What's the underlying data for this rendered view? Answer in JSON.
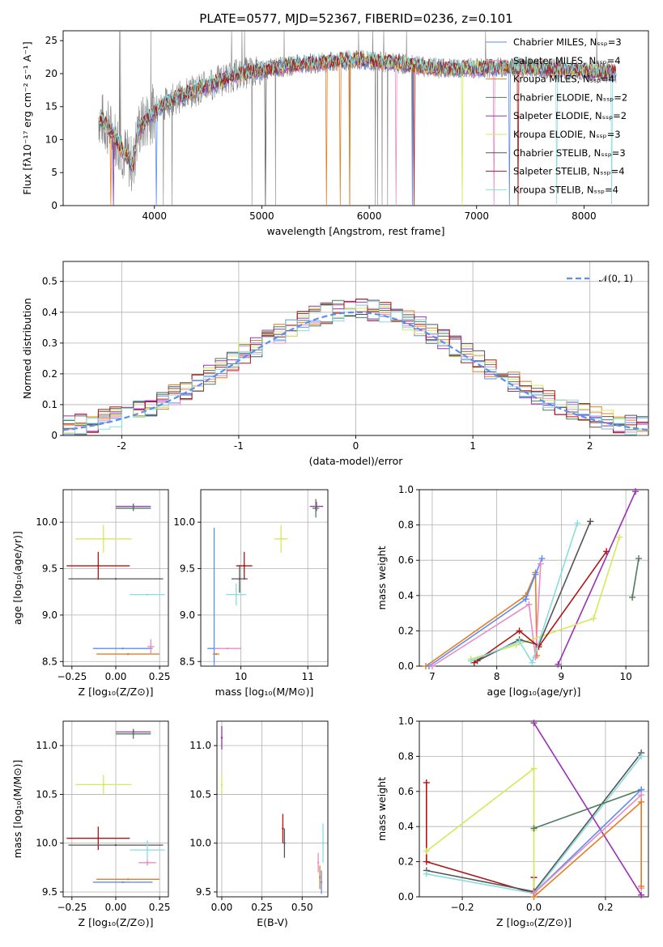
{
  "chart_data": [
    {
      "id": "spectrum",
      "type": "line",
      "title": "PLATE=0577, MJD=52367, FIBERID=0236, z=0.101",
      "xlabel": "wavelength [Angstrom, rest frame]",
      "ylabel": "Flux [fλ10⁻¹⁷ erg cm⁻² s⁻¹ A⁻¹]",
      "xlim": [
        3150,
        8600
      ],
      "ylim": [
        0,
        26.5
      ],
      "xticks": [
        4000,
        5000,
        6000,
        7000,
        8000
      ],
      "yticks": [
        0,
        5,
        10,
        15,
        20,
        25
      ],
      "grid": false,
      "legend_position": "top-right",
      "legend": [
        {
          "label": "Chabrier MILES, Nₛₛₚ=3",
          "color": "#5b8ef0"
        },
        {
          "label": "Salpeter MILES, Nₛₛₚ=4",
          "color": "#e98bc4"
        },
        {
          "label": "Kroupa MILES, Nₛₛₚ=4",
          "color": "#e57e22"
        },
        {
          "label": "Chabrier ELODIE, Nₛₛₚ=2",
          "color": "#4e7d5c"
        },
        {
          "label": "Salpeter ELODIE, Nₛₛₚ=2",
          "color": "#9b30b5"
        },
        {
          "label": "Kroupa ELODIE, Nₛₛₚ=3",
          "color": "#d5e85a"
        },
        {
          "label": "Chabrier STELIB, Nₛₛₚ=3",
          "color": "#555555"
        },
        {
          "label": "Salpeter STELIB, Nₛₛₚ=4",
          "color": "#b01515"
        },
        {
          "label": "Kroupa STELIB, Nₛₛₚ=4",
          "color": "#88dde0"
        }
      ],
      "continuum": {
        "x": [
          3480,
          3600,
          3700,
          3800,
          3850,
          3950,
          4100,
          4300,
          4500,
          4700,
          4900,
          5100,
          5300,
          5500,
          5700,
          5900,
          6100,
          6300,
          6500,
          6700,
          6900,
          7100,
          7300,
          7500,
          7700,
          7900,
          8100,
          8300
        ],
        "y": [
          13.5,
          11.2,
          8.5,
          6.0,
          11.5,
          13.5,
          15.5,
          17.0,
          18.2,
          19.5,
          20.3,
          20.8,
          21.3,
          21.6,
          21.9,
          22.1,
          21.8,
          21.5,
          21.0,
          20.8,
          20.8,
          20.9,
          21.0,
          20.9,
          20.7,
          20.5,
          20.3,
          20.0
        ]
      }
    },
    {
      "id": "residuals",
      "type": "histogram",
      "xlabel": "(data-model)/error",
      "ylabel": "Normed distribution",
      "xlim": [
        -2.5,
        2.5
      ],
      "ylim": [
        0,
        0.565
      ],
      "xticks": [
        -2,
        -1,
        0,
        1,
        2
      ],
      "yticks": [
        0.0,
        0.1,
        0.2,
        0.3,
        0.4,
        0.5
      ],
      "grid": true,
      "legend": [
        {
          "label": "𝒩(0, 1)",
          "color": "#5b8ef0",
          "style": "dashed"
        }
      ],
      "legend_position": "top-right",
      "bin_width": 0.1,
      "reference_peak": 0.4
    },
    {
      "id": "age-vs-Z",
      "type": "errorbar",
      "xlabel": "Z [log₁₀(Z/Z⊙)]",
      "ylabel": "age  [log₁₀(age/yr)]",
      "xlim": [
        -0.3,
        0.3
      ],
      "ylim": [
        8.45,
        10.35
      ],
      "xticks": [
        "−0.25",
        "0.00",
        "0.25"
      ],
      "yticks": [
        "8.5",
        "9.0",
        "9.5",
        "10.0"
      ],
      "grid": true,
      "points": [
        {
          "color": "#d5e85a",
          "x": -0.07,
          "y": 9.82,
          "xerr": 0.16,
          "yerr": 0.15
        },
        {
          "color": "#b01515",
          "x": -0.1,
          "y": 9.53,
          "xerr": 0.18,
          "yerr": 0.15
        },
        {
          "color": "#555555",
          "x": 0.0,
          "y": 9.39,
          "xerr": 0.27,
          "yerr": 0.0
        },
        {
          "color": "#88dde0",
          "x": 0.18,
          "y": 9.22,
          "xerr": 0.1,
          "yerr": 0.0
        },
        {
          "color": "#5b8ef0",
          "x": 0.04,
          "y": 8.64,
          "xerr": 0.17,
          "yerr": 0.0
        },
        {
          "color": "#e57e22",
          "x": 0.07,
          "y": 8.58,
          "xerr": 0.18,
          "yerr": 0.0
        },
        {
          "color": "#9b30b5",
          "x": 0.1,
          "y": 10.17,
          "xerr": 0.1,
          "yerr": 0.03
        },
        {
          "color": "#4e7d5c",
          "x": 0.1,
          "y": 10.15,
          "xerr": 0.1,
          "yerr": 0.03
        },
        {
          "color": "#e98bc4",
          "x": 0.2,
          "y": 8.66,
          "xerr": 0.02,
          "yerr": 0.08
        }
      ]
    },
    {
      "id": "age-vs-mass",
      "type": "errorbar",
      "xlabel": "mass [log₁₀(M/M⊙)]",
      "ylabel": "",
      "xlim": [
        9.4,
        11.3
      ],
      "ylim": [
        8.45,
        10.35
      ],
      "xticks": [
        "10",
        "11"
      ],
      "yticks": [
        "8.5",
        "9.0",
        "9.5",
        "10.0"
      ],
      "grid": true,
      "points": [
        {
          "color": "#d5e85a",
          "x": 10.6,
          "y": 9.82,
          "xerr": 0.1,
          "yerr": 0.15
        },
        {
          "color": "#b01515",
          "x": 10.05,
          "y": 9.53,
          "xerr": 0.12,
          "yerr": 0.15
        },
        {
          "color": "#555555",
          "x": 9.98,
          "y": 9.39,
          "xerr": 0.12,
          "yerr": 0.15
        },
        {
          "color": "#88dde0",
          "x": 9.93,
          "y": 9.22,
          "xerr": 0.15,
          "yerr": 0.12
        },
        {
          "color": "#5b8ef0",
          "x": 9.6,
          "y": 8.64,
          "xerr": 0.1,
          "yerr": 1.3
        },
        {
          "color": "#e57e22",
          "x": 9.63,
          "y": 8.58,
          "xerr": 0.05,
          "yerr": 0.0
        },
        {
          "color": "#e98bc4",
          "x": 9.8,
          "y": 8.64,
          "xerr": 0.2,
          "yerr": 0.0
        },
        {
          "color": "#9b30b5",
          "x": 11.13,
          "y": 10.17,
          "xerr": 0.1,
          "yerr": 0.05
        },
        {
          "color": "#4e7d5c",
          "x": 11.12,
          "y": 10.15,
          "xerr": 0.05,
          "yerr": 0.1
        }
      ]
    },
    {
      "id": "mass-weight-vs-age",
      "type": "line",
      "xlabel": "age  [log₁₀(age/yr)]",
      "ylabel": "mass weight",
      "xlim": [
        6.8,
        10.35
      ],
      "ylim": [
        0,
        1.0
      ],
      "xticks": [
        "7",
        "8",
        "9",
        "10"
      ],
      "yticks": [
        "0.0",
        "0.2",
        "0.4",
        "0.6",
        "0.8",
        "1.0"
      ],
      "grid": true,
      "series": [
        {
          "color": "#e57e22",
          "x": [
            6.9,
            8.45,
            8.6,
            8.62
          ],
          "y": [
            0.0,
            0.4,
            0.53,
            0.06
          ]
        },
        {
          "color": "#5b8ef0",
          "x": [
            6.95,
            8.45,
            8.6,
            8.7
          ],
          "y": [
            0.0,
            0.38,
            0.52,
            0.61
          ]
        },
        {
          "color": "#e98bc4",
          "x": [
            7.0,
            8.5,
            8.6,
            8.68
          ],
          "y": [
            0.0,
            0.35,
            0.05,
            0.58
          ]
        },
        {
          "color": "#4e7d5c",
          "x": [
            10.1,
            10.2
          ],
          "y": [
            0.39,
            0.61
          ]
        },
        {
          "color": "#9b30b5",
          "x": [
            8.95,
            10.15
          ],
          "y": [
            0.01,
            0.99
          ]
        },
        {
          "color": "#d5e85a",
          "x": [
            7.6,
            8.3,
            9.5,
            9.9
          ],
          "y": [
            0.04,
            0.12,
            0.27,
            0.73
          ]
        },
        {
          "color": "#555555",
          "x": [
            7.7,
            8.35,
            8.65,
            9.45
          ],
          "y": [
            0.03,
            0.15,
            0.12,
            0.82
          ]
        },
        {
          "color": "#b01515",
          "x": [
            7.65,
            8.35,
            8.65,
            9.7
          ],
          "y": [
            0.02,
            0.2,
            0.11,
            0.65
          ]
        },
        {
          "color": "#88dde0",
          "x": [
            7.6,
            8.35,
            8.55,
            9.25
          ],
          "y": [
            0.03,
            0.14,
            0.02,
            0.81
          ]
        }
      ]
    },
    {
      "id": "mass-vs-Z",
      "type": "errorbar",
      "xlabel": "Z [log₁₀(Z/Z⊙)]",
      "ylabel": "mass [log₁₀(M/M⊙)]",
      "xlim": [
        -0.3,
        0.3
      ],
      "ylim": [
        9.45,
        11.25
      ],
      "xticks": [
        "−0.25",
        "0.00",
        "0.25"
      ],
      "yticks": [
        "9.5",
        "10.0",
        "10.5",
        "11.0"
      ],
      "grid": true,
      "points": [
        {
          "color": "#d5e85a",
          "x": -0.07,
          "y": 10.6,
          "xerr": 0.16,
          "yerr": 0.1
        },
        {
          "color": "#b01515",
          "x": -0.1,
          "y": 10.05,
          "xerr": 0.18,
          "yerr": 0.12
        },
        {
          "color": "#555555",
          "x": 0.0,
          "y": 9.98,
          "xerr": 0.27,
          "yerr": 0.0
        },
        {
          "color": "#88dde0",
          "x": 0.18,
          "y": 9.93,
          "xerr": 0.1,
          "yerr": 0.1
        },
        {
          "color": "#5b8ef0",
          "x": 0.04,
          "y": 9.6,
          "xerr": 0.17,
          "yerr": 0.0
        },
        {
          "color": "#e57e22",
          "x": 0.07,
          "y": 9.63,
          "xerr": 0.18,
          "yerr": 0.0
        },
        {
          "color": "#e98bc4",
          "x": 0.18,
          "y": 9.8,
          "xerr": 0.05,
          "yerr": 0.03
        },
        {
          "color": "#9b30b5",
          "x": 0.1,
          "y": 11.14,
          "xerr": 0.1,
          "yerr": 0.03
        },
        {
          "color": "#4e7d5c",
          "x": 0.1,
          "y": 11.12,
          "xerr": 0.1,
          "yerr": 0.05
        }
      ]
    },
    {
      "id": "mass-vs-EBV",
      "type": "errorbar",
      "xlabel": "E(B-V)",
      "ylabel": "",
      "xlim": [
        -0.03,
        0.66
      ],
      "ylim": [
        9.45,
        11.25
      ],
      "xticks": [
        "0.00",
        "0.25",
        "0.50"
      ],
      "yticks": [
        "9.5",
        "10.0",
        "10.5",
        "11.0"
      ],
      "grid": true,
      "points": [
        {
          "color": "#9b30b5",
          "x": 0.0,
          "y": 11.08,
          "xerr": 0.0,
          "yerr": 0.12
        },
        {
          "color": "#d5e85a",
          "x": 0.0,
          "y": 10.6,
          "xerr": 0.0,
          "yerr": 0.1
        },
        {
          "color": "#b01515",
          "x": 0.38,
          "y": 10.15,
          "xerr": 0.0,
          "yerr": 0.15
        },
        {
          "color": "#555555",
          "x": 0.39,
          "y": 10.0,
          "xerr": 0.0,
          "yerr": 0.15
        },
        {
          "color": "#88dde0",
          "x": 0.63,
          "y": 10.0,
          "xerr": 0.0,
          "yerr": 0.2
        },
        {
          "color": "#e98bc4",
          "x": 0.6,
          "y": 9.8,
          "xerr": 0.0,
          "yerr": 0.1
        },
        {
          "color": "#e57e22",
          "x": 0.61,
          "y": 9.65,
          "xerr": 0.0,
          "yerr": 0.12
        },
        {
          "color": "#5b8ef0",
          "x": 0.62,
          "y": 9.6,
          "xerr": 0.0,
          "yerr": 0.12
        }
      ]
    },
    {
      "id": "mass-weight-vs-Z",
      "type": "line",
      "xlabel": "Z [log₁₀(Z/Z⊙)]",
      "ylabel": "mass weight",
      "xlim": [
        -0.32,
        0.32
      ],
      "ylim": [
        0,
        1.0
      ],
      "xticks": [
        "−0.2",
        "0.0",
        "0.2"
      ],
      "yticks": [
        "0.0",
        "0.2",
        "0.4",
        "0.6",
        "0.8",
        "1.0"
      ],
      "grid": true,
      "series": [
        {
          "color": "#b01515",
          "x": [
            -0.3,
            -0.3,
            0.0,
            0.0
          ],
          "y": [
            0.65,
            0.2,
            0.02,
            0.11
          ]
        },
        {
          "color": "#d5e85a",
          "x": [
            -0.3,
            0.0,
            0.0,
            0.0
          ],
          "y": [
            0.26,
            0.73,
            0.02,
            0.38
          ]
        },
        {
          "color": "#555555",
          "x": [
            -0.3,
            0.0,
            0.3
          ],
          "y": [
            0.15,
            0.03,
            0.82
          ]
        },
        {
          "color": "#88dde0",
          "x": [
            -0.3,
            0.0,
            0.3
          ],
          "y": [
            0.13,
            0.02,
            0.8
          ]
        },
        {
          "color": "#4e7d5c",
          "x": [
            0.0,
            0.3
          ],
          "y": [
            0.39,
            0.61
          ]
        },
        {
          "color": "#9b30b5",
          "x": [
            0.0,
            0.3
          ],
          "y": [
            0.99,
            0.01
          ]
        },
        {
          "color": "#5b8ef0",
          "x": [
            0.0,
            0.3
          ],
          "y": [
            0.02,
            0.61
          ]
        },
        {
          "color": "#e98bc4",
          "x": [
            0.0,
            0.3,
            0.3
          ],
          "y": [
            0.02,
            0.58,
            0.05
          ]
        },
        {
          "color": "#e57e22",
          "x": [
            0.0,
            0.3,
            0.3
          ],
          "y": [
            0.0,
            0.54,
            0.06
          ]
        }
      ]
    }
  ]
}
